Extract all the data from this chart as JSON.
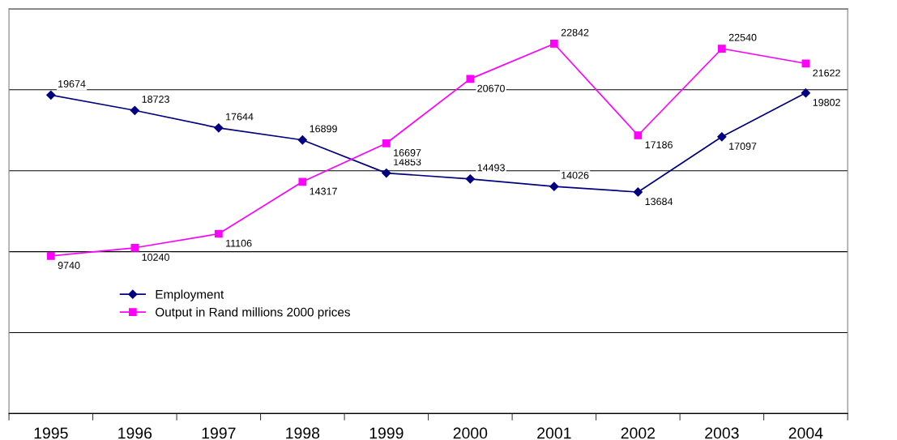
{
  "chart_data": {
    "type": "line",
    "categories": [
      "1995",
      "1996",
      "1997",
      "1998",
      "1999",
      "2000",
      "2001",
      "2002",
      "2003",
      "2004"
    ],
    "series": [
      {
        "name": "Employment",
        "color": "#000080",
        "marker": "diamond",
        "values": [
          19674,
          18723,
          17644,
          16899,
          14853,
          14493,
          14026,
          13684,
          17097,
          19802
        ]
      },
      {
        "name": "Output in Rand millions 2000 prices",
        "color": "#ff00ff",
        "marker": "square",
        "values": [
          9740,
          10240,
          11106,
          14317,
          16697,
          20670,
          22842,
          17186,
          22540,
          21622
        ]
      }
    ],
    "ylim": [
      0,
      25000
    ],
    "yticks": [
      {
        "value": 0,
        "label": null
      },
      {
        "value": 5000,
        "label": null
      },
      {
        "value": 10000,
        "label": null
      },
      {
        "value": 15000,
        "label": null
      },
      {
        "value": 20000,
        "label": null
      },
      {
        "value": 25000,
        "label": null
      }
    ],
    "tick_labels": "x",
    "grid": "y",
    "legend": "center",
    "data_labels": true,
    "line_style": "solid"
  }
}
